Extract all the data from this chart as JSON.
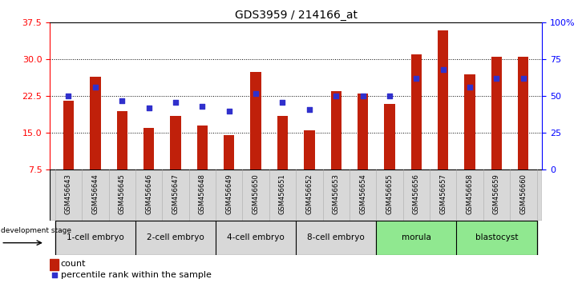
{
  "title": "GDS3959 / 214166_at",
  "samples": [
    "GSM456643",
    "GSM456644",
    "GSM456645",
    "GSM456646",
    "GSM456647",
    "GSM456648",
    "GSM456649",
    "GSM456650",
    "GSM456651",
    "GSM456652",
    "GSM456653",
    "GSM456654",
    "GSM456655",
    "GSM456656",
    "GSM456657",
    "GSM456658",
    "GSM456659",
    "GSM456660"
  ],
  "counts": [
    21.5,
    26.5,
    19.5,
    16.0,
    18.5,
    16.5,
    14.5,
    27.5,
    18.5,
    15.5,
    23.5,
    23.0,
    21.0,
    31.0,
    36.0,
    27.0,
    30.5,
    30.5
  ],
  "percentiles": [
    50,
    56,
    47,
    42,
    46,
    43,
    40,
    52,
    46,
    41,
    50,
    50,
    50,
    62,
    68,
    56,
    62,
    62
  ],
  "stages": [
    {
      "label": "1-cell embryo",
      "start": 0,
      "end": 3
    },
    {
      "label": "2-cell embryo",
      "start": 3,
      "end": 6
    },
    {
      "label": "4-cell embryo",
      "start": 6,
      "end": 9
    },
    {
      "label": "8-cell embryo",
      "start": 9,
      "end": 12
    },
    {
      "label": "morula",
      "start": 12,
      "end": 15
    },
    {
      "label": "blastocyst",
      "start": 15,
      "end": 18
    }
  ],
  "stage_colors": [
    "#d8d8d8",
    "#d8d8d8",
    "#d8d8d8",
    "#d8d8d8",
    "#90e890",
    "#90e890"
  ],
  "ylim_left": [
    7.5,
    37.5
  ],
  "yticks_left": [
    7.5,
    15.0,
    22.5,
    30.0,
    37.5
  ],
  "ylim_right": [
    0,
    100
  ],
  "yticks_right": [
    0,
    25,
    50,
    75,
    100
  ],
  "bar_color": "#c0200a",
  "marker_color": "#3030cc",
  "bar_width": 0.4,
  "legend_count_color": "#c0200a",
  "legend_pct_color": "#3030cc",
  "grid_yticks": [
    15.0,
    22.5,
    30.0
  ]
}
